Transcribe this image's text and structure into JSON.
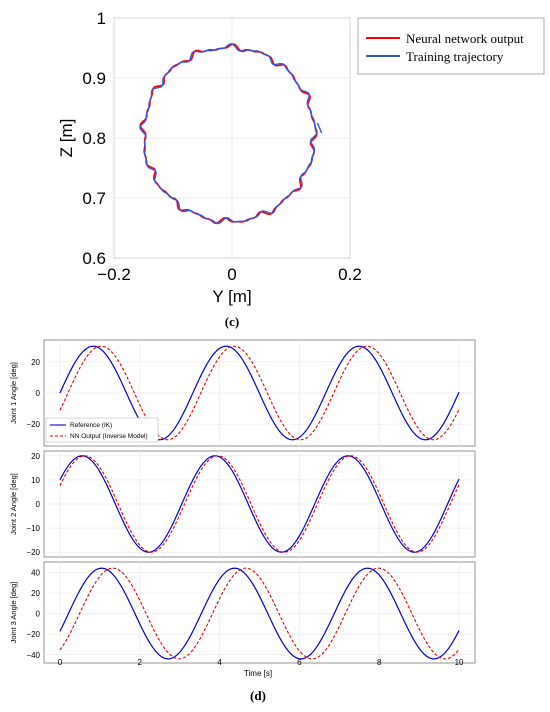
{
  "chart_data": [
    {
      "type": "line",
      "panel_label": "(c)",
      "xlabel": "Y [m]",
      "ylabel": "Z [m]",
      "xlim": [
        -0.2,
        0.2
      ],
      "ylim": [
        0.6,
        1.0
      ],
      "xticks": [
        "−0.2",
        "0",
        "0.2"
      ],
      "yticks": [
        "0.6",
        "0.7",
        "0.8",
        "0.9",
        "1"
      ],
      "grid": true,
      "legend_position": "outside-top-right",
      "colors": {
        "nn": "#ff0000",
        "training": "#3355dd"
      },
      "circle": {
        "center_y": -0.005,
        "center_z": 0.806,
        "radius": 0.145
      },
      "series": [
        {
          "name": "Neural network output",
          "color": "#ff0000"
        },
        {
          "name": "Training trajectory",
          "color": "#3355dd"
        }
      ]
    },
    {
      "type": "line",
      "panel_label": "(d)",
      "xlabel": "Time [s]",
      "xlim": [
        -0.4,
        10.4
      ],
      "xticks": [
        "0",
        "2",
        "4",
        "6",
        "8",
        "10"
      ],
      "grid": true,
      "colors": {
        "reference": "#0000cc",
        "nn": "#dd0000"
      },
      "legend": [
        "Reference (IK)",
        "NN Output (Inverse Model)"
      ],
      "subplots": [
        {
          "ylabel": "Joint 1 Angle [deg]",
          "ylim": [
            -34,
            34
          ],
          "yticks": [
            "20",
            "0",
            "−20"
          ],
          "tick_values": [
            20,
            0,
            -20
          ],
          "amplitude": 30,
          "period_s": 3.33,
          "reference_phase_deg": 0,
          "nn_lag_s": 0.2
        },
        {
          "ylabel": "Joint 2 Angle [deg]",
          "ylim": [
            -22,
            22
          ],
          "yticks": [
            "20",
            "10",
            "0",
            "−10",
            "−20"
          ],
          "tick_values": [
            20,
            10,
            0,
            -10,
            -20
          ],
          "amplitude": 20,
          "period_s": 3.33,
          "reference_phase_deg": 30,
          "nn_lag_s": 0.07
        },
        {
          "ylabel": "Joint 3 Angle [deg]",
          "ylim": [
            -48,
            50
          ],
          "yticks": [
            "40",
            "20",
            "0",
            "−20",
            "−40"
          ],
          "tick_values": [
            40,
            20,
            0,
            -20,
            -40
          ],
          "amplitude": 44,
          "period_s": 3.33,
          "reference_phase_deg": -23,
          "nn_lag_s": 0.28
        }
      ]
    }
  ]
}
